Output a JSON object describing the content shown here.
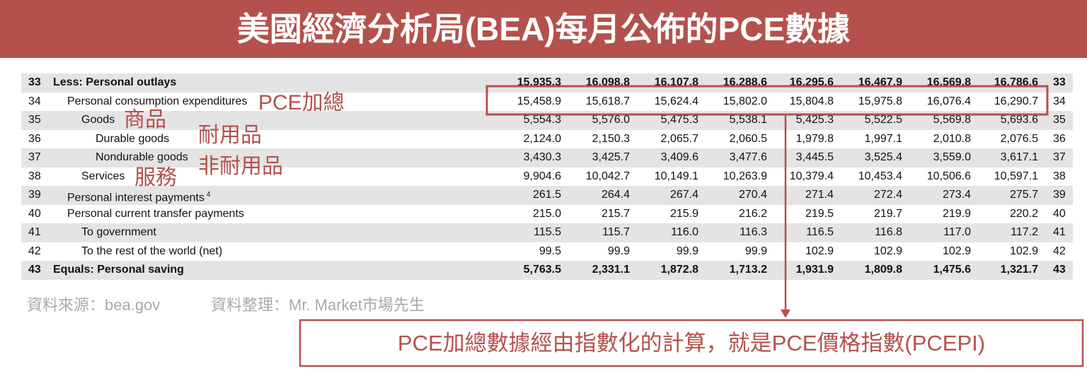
{
  "header": {
    "title": "美國經濟分析局(BEA)每月公佈的PCE數據"
  },
  "table": {
    "rows": [
      {
        "line": "33",
        "label": "Less: Personal outlays",
        "values": [
          "15,935.3",
          "16,098.8",
          "16,107.8",
          "16,288.6",
          "16,295.6",
          "16,467.9",
          "16,569.8",
          "16,786.6"
        ]
      },
      {
        "line": "34",
        "label": "Personal consumption expenditures",
        "values": [
          "15,458.9",
          "15,618.7",
          "15,624.4",
          "15,802.0",
          "15,804.8",
          "15,975.8",
          "16,076.4",
          "16,290.7"
        ]
      },
      {
        "line": "35",
        "label": "Goods",
        "values": [
          "5,554.3",
          "5,576.0",
          "5,475.3",
          "5,538.1",
          "5,425.3",
          "5,522.5",
          "5,569.8",
          "5,693.6"
        ]
      },
      {
        "line": "36",
        "label": "Durable goods",
        "values": [
          "2,124.0",
          "2,150.3",
          "2,065.7",
          "2,060.5",
          "1,979.8",
          "1,997.1",
          "2,010.8",
          "2,076.5"
        ]
      },
      {
        "line": "37",
        "label": "Nondurable goods",
        "values": [
          "3,430.3",
          "3,425.7",
          "3,409.6",
          "3,477.6",
          "3,445.5",
          "3,525.4",
          "3,559.0",
          "3,617.1"
        ]
      },
      {
        "line": "38",
        "label": "Services",
        "values": [
          "9,904.6",
          "10,042.7",
          "10,149.1",
          "10,263.9",
          "10,379.4",
          "10,453.4",
          "10,506.6",
          "10,597.1"
        ]
      },
      {
        "line": "39",
        "label": "Personal interest payments",
        "note": "4",
        "values": [
          "261.5",
          "264.4",
          "267.4",
          "270.4",
          "271.4",
          "272.4",
          "273.4",
          "275.7"
        ]
      },
      {
        "line": "40",
        "label": "Personal current transfer payments",
        "values": [
          "215.0",
          "215.7",
          "215.9",
          "216.2",
          "219.5",
          "219.7",
          "219.9",
          "220.2"
        ]
      },
      {
        "line": "41",
        "label": "To government",
        "values": [
          "115.5",
          "115.7",
          "116.0",
          "116.3",
          "116.5",
          "116.8",
          "117.0",
          "117.2"
        ]
      },
      {
        "line": "42",
        "label": "To the rest of the world (net)",
        "values": [
          "99.5",
          "99.9",
          "99.9",
          "99.9",
          "102.9",
          "102.9",
          "102.9",
          "102.9"
        ]
      },
      {
        "line": "43",
        "label": "Equals: Personal saving",
        "values": [
          "5,763.5",
          "2,331.1",
          "1,872.8",
          "1,713.2",
          "1,931.9",
          "1,809.8",
          "1,475.6",
          "1,321.7"
        ]
      }
    ]
  },
  "annotations": {
    "pce_total": "PCE加總",
    "goods": "商品",
    "durable": "耐用品",
    "nondurable": "非耐用品",
    "services": "服務",
    "conclusion": "PCE加總數據經由指數化的計算，就是PCE價格指數(PCEPI)"
  },
  "footer": {
    "source": "資料來源：bea.gov",
    "compiled": "資料整理：Mr. Market市場先生"
  }
}
